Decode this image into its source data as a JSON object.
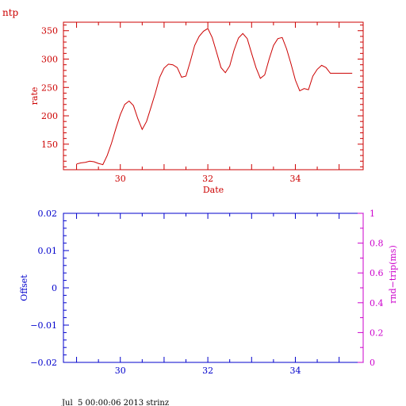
{
  "header": {
    "label": "ntp"
  },
  "footer": {
    "stamp": "Jul  5 00:00:06 2013 strinz"
  },
  "colors": {
    "top": "#cc0000",
    "bottom_left": "#0000cc",
    "bottom_right": "#cc00cc"
  },
  "chart_data": [
    {
      "type": "line",
      "title": "",
      "xlabel": "Date",
      "ylabel": "rate",
      "xlim": [
        28.7,
        35.55
      ],
      "ylim": [
        105,
        365
      ],
      "xticks": [
        30,
        32,
        34
      ],
      "xtick_labels": [
        "30",
        "32",
        "34"
      ],
      "yticks": [
        150,
        200,
        250,
        300,
        350
      ],
      "ytick_labels": [
        "150",
        "200",
        "250",
        "300",
        "350"
      ],
      "grid": false,
      "series": [
        {
          "name": "",
          "x": [
            29.0,
            29.1,
            29.2,
            29.3,
            29.4,
            29.5,
            29.6,
            29.7,
            29.8,
            29.9,
            30.0,
            30.1,
            30.2,
            30.3,
            30.4,
            30.5,
            30.6,
            30.7,
            30.8,
            30.9,
            31.0,
            31.1,
            31.2,
            31.3,
            31.4,
            31.5,
            31.6,
            31.7,
            31.8,
            31.9,
            32.0,
            32.1,
            32.2,
            32.3,
            32.4,
            32.5,
            32.6,
            32.7,
            32.8,
            32.9,
            33.0,
            33.1,
            33.2,
            33.3,
            33.4,
            33.5,
            33.6,
            33.7,
            33.8,
            33.9,
            34.0,
            34.1,
            34.2,
            34.3,
            34.4,
            34.5,
            34.6,
            34.7,
            34.8,
            34.9,
            35.0,
            35.1,
            35.2,
            35.3
          ],
          "y": [
            115,
            117,
            118,
            120,
            119,
            116,
            114,
            130,
            152,
            178,
            202,
            220,
            226,
            218,
            195,
            176,
            190,
            215,
            240,
            268,
            284,
            291,
            290,
            285,
            268,
            270,
            296,
            324,
            340,
            349,
            354,
            338,
            312,
            285,
            276,
            288,
            316,
            337,
            345,
            336,
            310,
            285,
            266,
            272,
            300,
            324,
            336,
            338,
            318,
            292,
            263,
            244,
            248,
            246,
            270,
            282,
            289,
            285,
            275,
            275,
            275,
            275,
            275,
            275
          ]
        }
      ]
    },
    {
      "type": "line",
      "title": "",
      "xlabel": "",
      "ylabel": "Offset",
      "y2label": "rnd−trip(ms)",
      "xlim": [
        28.7,
        35.55
      ],
      "ylim": [
        -0.02,
        0.02
      ],
      "y2lim": [
        0,
        1
      ],
      "xticks": [
        30,
        32,
        34
      ],
      "xtick_labels": [
        "30",
        "32",
        "34"
      ],
      "yticks": [
        -0.02,
        -0.01,
        0,
        0.01,
        0.02
      ],
      "ytick_labels": [
        "−0.02",
        "−0.01",
        "0",
        "0.01",
        "0.02"
      ],
      "y2ticks": [
        0,
        0.2,
        0.4,
        0.6,
        0.8,
        1
      ],
      "y2tick_labels": [
        "0",
        "0.2",
        "0.4",
        "0.6",
        "0.8",
        "1"
      ],
      "grid": false,
      "series": []
    }
  ]
}
